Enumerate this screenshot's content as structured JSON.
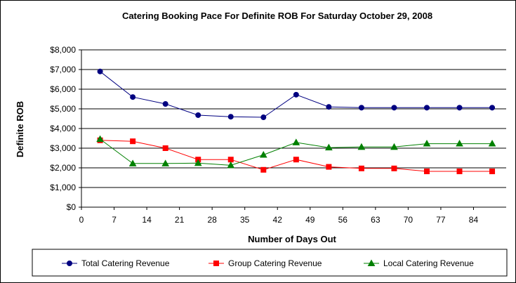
{
  "chart_data": {
    "type": "line",
    "title": "Catering Booking Pace For Definite ROB For Saturday October 29, 2008",
    "xlabel": "Number of Days Out",
    "ylabel": "Definite ROB",
    "xlim": [
      0,
      91
    ],
    "ylim": [
      0,
      8000
    ],
    "x_ticks": [
      "0",
      "7",
      "14",
      "21",
      "28",
      "35",
      "42",
      "49",
      "56",
      "63",
      "70",
      "77",
      "84"
    ],
    "y_ticks": [
      "$0",
      "$1,000",
      "$2,000",
      "$3,000",
      "$4,000",
      "$5,000",
      "$6,000",
      "$7,000",
      "$8,000"
    ],
    "y_tick_values": [
      0,
      1000,
      2000,
      3000,
      4000,
      5000,
      6000,
      7000,
      8000
    ],
    "x_tick_values": [
      0,
      7,
      14,
      21,
      28,
      35,
      42,
      49,
      56,
      63,
      70,
      77,
      84
    ],
    "grid": "horizontal",
    "legend_position": "bottom",
    "x": [
      4,
      11,
      18,
      25,
      32,
      39,
      46,
      53,
      60,
      67,
      74,
      81,
      88
    ],
    "series": [
      {
        "name": "Total Catering Revenue",
        "color": "#000080",
        "marker": "circle",
        "values": [
          6900,
          5600,
          5250,
          4680,
          4600,
          4570,
          5720,
          5100,
          5060,
          5060,
          5060,
          5060,
          5060
        ]
      },
      {
        "name": "Group Catering Revenue",
        "color": "#FF0000",
        "marker": "square",
        "values": [
          3400,
          3350,
          3000,
          2420,
          2420,
          1900,
          2420,
          2050,
          1970,
          1970,
          1820,
          1820,
          1820
        ]
      },
      {
        "name": "Local Catering Revenue",
        "color": "#008000",
        "marker": "triangle",
        "values": [
          3460,
          2220,
          2220,
          2240,
          2130,
          2660,
          3290,
          3030,
          3060,
          3060,
          3230,
          3230,
          3230
        ]
      }
    ]
  }
}
